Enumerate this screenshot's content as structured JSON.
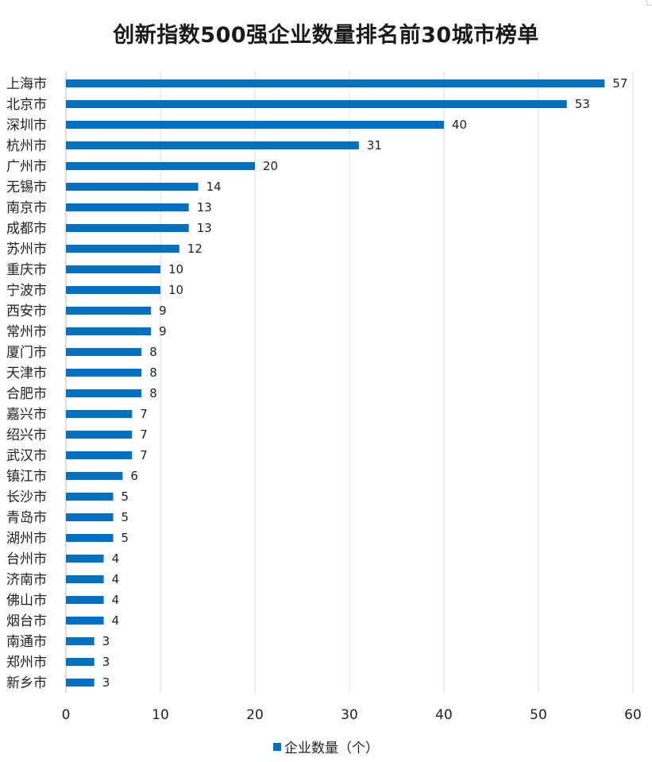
{
  "colors": {
    "bar": "#0070c0",
    "grid": "#d9d9d9",
    "axis": "#bfbfbf",
    "text": "#222222"
  },
  "chart_data": {
    "type": "bar",
    "orientation": "horizontal",
    "title": "创新指数500强企业数量排名前30城市榜单",
    "categories": [
      "上海市",
      "北京市",
      "深圳市",
      "杭州市",
      "广州市",
      "无锡市",
      "南京市",
      "成都市",
      "苏州市",
      "重庆市",
      "宁波市",
      "西安市",
      "常州市",
      "厦门市",
      "天津市",
      "合肥市",
      "嘉兴市",
      "绍兴市",
      "武汉市",
      "镇江市",
      "长沙市",
      "青岛市",
      "湖州市",
      "台州市",
      "济南市",
      "佛山市",
      "烟台市",
      "南通市",
      "郑州市",
      "新乡市"
    ],
    "series": [
      {
        "name": "企业数量（个）",
        "values": [
          57,
          53,
          40,
          31,
          20,
          14,
          13,
          13,
          12,
          10,
          10,
          9,
          9,
          8,
          8,
          8,
          7,
          7,
          7,
          6,
          5,
          5,
          5,
          4,
          4,
          4,
          4,
          3,
          3,
          3
        ]
      }
    ],
    "xlim": [
      0,
      60
    ],
    "x_ticks": [
      0,
      10,
      20,
      30,
      40,
      50,
      60
    ],
    "grid": true,
    "legend_position": "bottom",
    "data_labels": true
  }
}
